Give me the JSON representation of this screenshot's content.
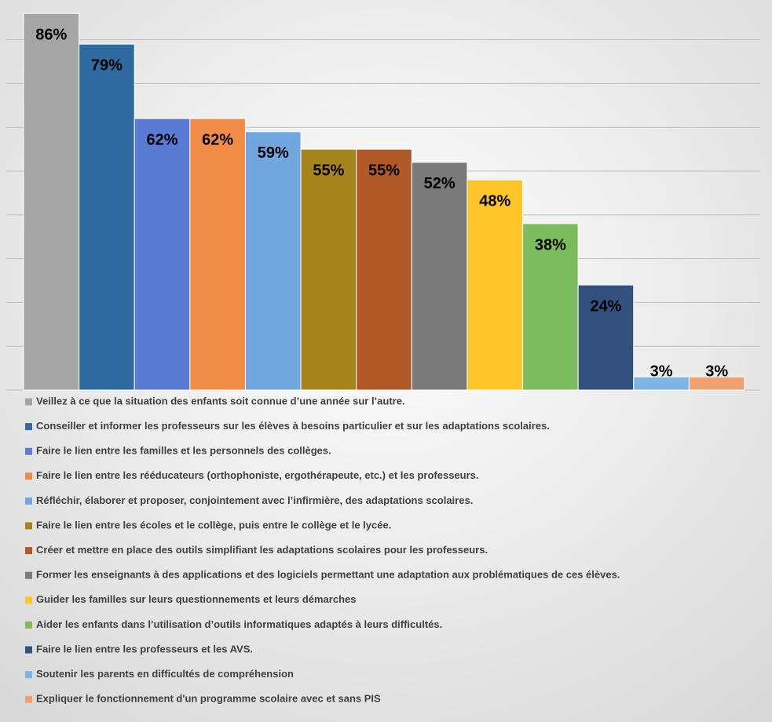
{
  "chart_data": {
    "type": "bar",
    "categories": [
      "Veillez à ce que la situation des enfants soit connue d’une année sur l’autre.",
      "Conseiller et informer les professeurs sur les élèves à besoins particulier et sur les adaptations scolaires.",
      "Faire le lien entre les familles et les personnels des collèges.",
      "Faire le lien entre les rééducateurs (orthophoniste, ergothérapeute, etc.) et les professeurs.",
      "Réfléchir, élaborer et proposer, conjointement avec l’infirmière, des adaptations scolaires.",
      "Faire le lien entre les écoles et le collège, puis entre le collège et le lycée.",
      "Créer et mettre en place des outils simplifiant les adaptations scolaires pour les professeurs.",
      "Former les enseignants à des applications et des logiciels permettant une adaptation aux problématiques de ces élèves.",
      "Guider les familles sur leurs questionnements et leurs démarches",
      "Aider les enfants dans l’utilisation d’outils informatiques adaptés à leurs difficultés.",
      "Faire le lien entre les professeurs et les AVS.",
      "Soutenir les parents en difficultés de compréhension",
      "Expliquer le fonctionnement d'un programme scolaire avec et sans PIS"
    ],
    "values": [
      86,
      79,
      62,
      62,
      59,
      55,
      55,
      52,
      48,
      38,
      24,
      3,
      3
    ],
    "value_labels": [
      "86%",
      "79%",
      "62%",
      "62%",
      "59%",
      "55%",
      "55%",
      "52%",
      "48%",
      "38%",
      "24%",
      "3%",
      "3%"
    ],
    "colors": [
      "#a5a5a5",
      "#2f6ba0",
      "#5a7bd4",
      "#f08b48",
      "#6fa7de",
      "#a5841d",
      "#b05a2a",
      "#7a7a7a",
      "#ffc52a",
      "#7dbc5e",
      "#34507f",
      "#7eb4e6",
      "#f2a070"
    ],
    "ylim": [
      0,
      88
    ],
    "yticks": [
      0,
      10,
      20,
      30,
      40,
      50,
      60,
      70,
      80
    ],
    "grid": true,
    "legend": "bottom"
  }
}
